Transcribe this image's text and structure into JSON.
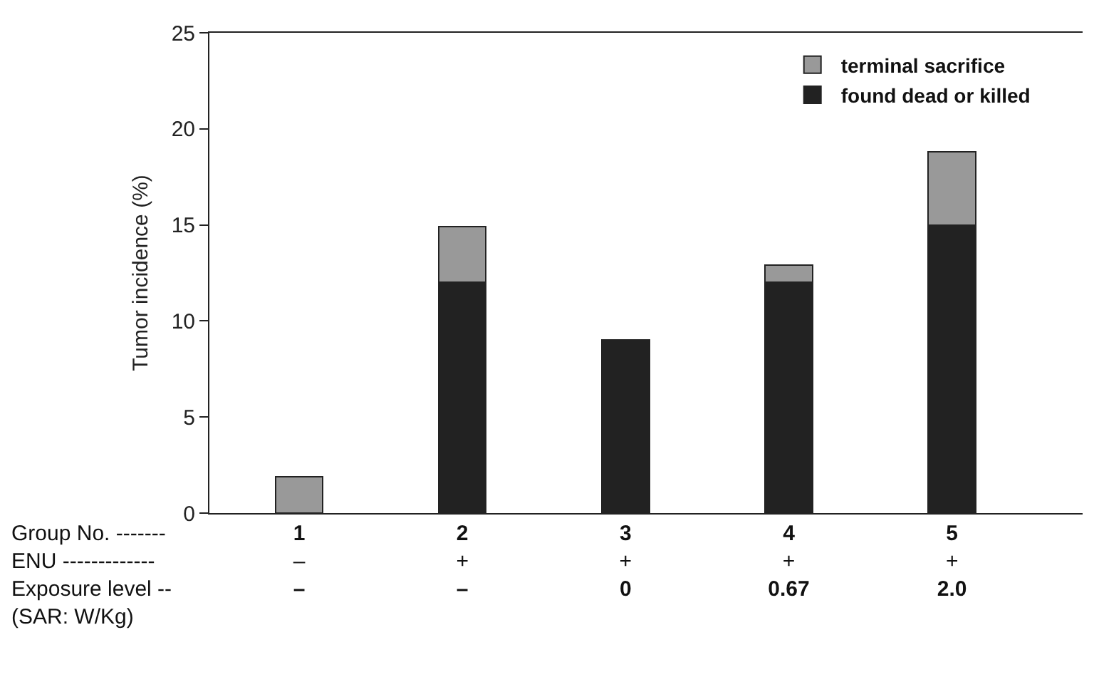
{
  "chart_data": {
    "type": "bar",
    "stacked": true,
    "ylabel": "Tumor incidence (%)",
    "categories": [
      "1\n–\n–",
      "2\n+\n–",
      "3\n+\n0",
      "4\n+\n0.67",
      "5\n+\n2.0"
    ],
    "series": [
      {
        "name": "found dead or killed",
        "color": "#222222",
        "values": [
          null,
          12,
          9,
          12,
          15
        ]
      },
      {
        "name": "terminal sacrifice",
        "color": "#999999",
        "values": [
          1.9,
          2.9,
          null,
          0.9,
          3.8
        ]
      }
    ],
    "ylim": [
      0,
      25
    ],
    "yticks": [
      0,
      5,
      10,
      15,
      20,
      25
    ],
    "legend": "top right",
    "annotations": [
      "Group No. -------",
      "ENU -------------",
      "Exposure level --\n(SAR: W/Kg)"
    ]
  }
}
